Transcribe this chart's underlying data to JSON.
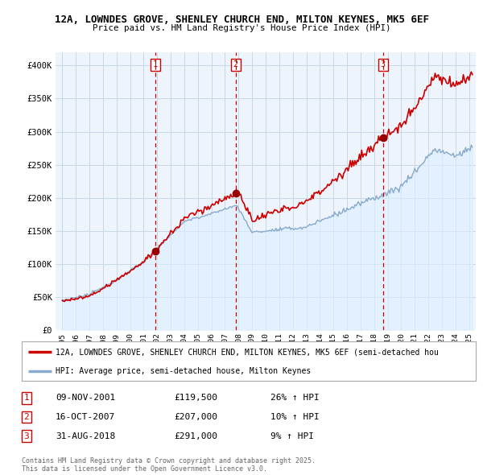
{
  "title": "12A, LOWNDES GROVE, SHENLEY CHURCH END, MILTON KEYNES, MK5 6EF",
  "subtitle": "Price paid vs. HM Land Registry's House Price Index (HPI)",
  "xlim": [
    1994.5,
    2025.5
  ],
  "ylim": [
    0,
    420000
  ],
  "yticks": [
    0,
    50000,
    100000,
    150000,
    200000,
    250000,
    300000,
    350000,
    400000
  ],
  "ytick_labels": [
    "£0",
    "£50K",
    "£100K",
    "£150K",
    "£200K",
    "£250K",
    "£300K",
    "£350K",
    "£400K"
  ],
  "xticks": [
    1995,
    1996,
    1997,
    1998,
    1999,
    2000,
    2001,
    2002,
    2003,
    2004,
    2005,
    2006,
    2007,
    2008,
    2009,
    2010,
    2011,
    2012,
    2013,
    2014,
    2015,
    2016,
    2017,
    2018,
    2019,
    2020,
    2021,
    2022,
    2023,
    2024,
    2025
  ],
  "property_color": "#cc0000",
  "hpi_color": "#88aacc",
  "hpi_fill_color": "#ddeeff",
  "sale_marker_color": "#990000",
  "sale_dates": [
    2001.86,
    2007.79,
    2018.66
  ],
  "sale_prices": [
    119500,
    207000,
    291000
  ],
  "sale_labels": [
    "1",
    "2",
    "3"
  ],
  "vline_color": "#cc0000",
  "legend_property": "12A, LOWNDES GROVE, SHENLEY CHURCH END, MILTON KEYNES, MK5 6EF (semi-detached hou",
  "legend_hpi": "HPI: Average price, semi-detached house, Milton Keynes",
  "table_rows": [
    [
      "1",
      "09-NOV-2001",
      "£119,500",
      "26% ↑ HPI"
    ],
    [
      "2",
      "16-OCT-2007",
      "£207,000",
      "10% ↑ HPI"
    ],
    [
      "3",
      "31-AUG-2018",
      "£291,000",
      "9% ↑ HPI"
    ]
  ],
  "footnote": "Contains HM Land Registry data © Crown copyright and database right 2025.\nThis data is licensed under the Open Government Licence v3.0.",
  "background_color": "#ffffff",
  "chart_bg_color": "#eef4fb",
  "grid_color": "#c8d8e8"
}
